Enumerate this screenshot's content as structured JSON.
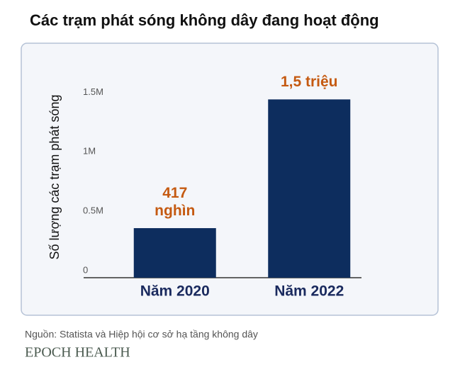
{
  "chart_data": {
    "type": "bar",
    "title": "Các trạm phát sóng không dây đang hoạt động",
    "y_label": "Số lượng các trạm phát sóng",
    "categories": [
      "Năm 2020",
      "Năm 2022"
    ],
    "values": [
      417000,
      1500000
    ],
    "value_labels": [
      "417\nnghìn",
      "1,5 triệu"
    ],
    "color": "#0d2d5e",
    "ylim": [
      0,
      1800000
    ],
    "yticks": [
      0,
      {
        "value": 500000,
        "label": "0.5M"
      },
      {
        "value": 1000000,
        "label": "1M"
      },
      {
        "value": 1500000,
        "label": "1.5M"
      }
    ],
    "grid": false
  },
  "footer": {
    "source": "Nguồn: Statista và Hiệp hội cơ sở hạ tầng không dây",
    "brand": "EPOCH HEALTH"
  }
}
